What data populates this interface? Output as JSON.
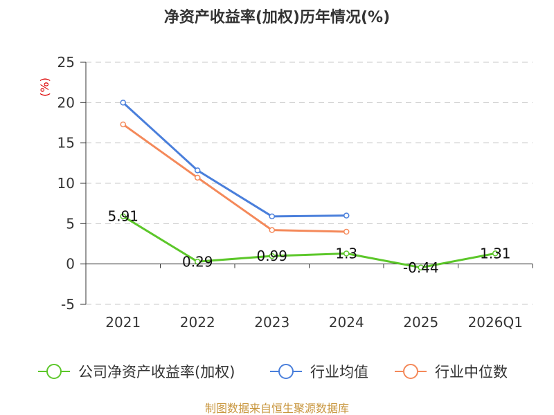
{
  "chart_data": {
    "type": "line",
    "title": "净资产收益率(加权)历年情况(%)",
    "ylabel": "(%)",
    "categories": [
      "2021",
      "2022",
      "2023",
      "2024",
      "2025",
      "2026Q1"
    ],
    "ylim": [
      -5,
      25
    ],
    "yticks": [
      "25",
      "20",
      "15",
      "10",
      "5",
      "0",
      "-5"
    ],
    "grid": true,
    "legend_position": "bottom",
    "series": [
      {
        "name": "公司净资产收益率(加权)",
        "color": "#5cc72a",
        "values": [
          5.91,
          0.29,
          0.99,
          1.3,
          -0.44,
          1.31
        ],
        "labels": [
          "5.91",
          "0.29",
          "0.99",
          "1.3",
          "-0.44",
          "1.31"
        ]
      },
      {
        "name": "行业均值",
        "color": "#4a7fdb",
        "values": [
          20.0,
          11.6,
          5.9,
          6.0,
          null,
          null
        ]
      },
      {
        "name": "行业中位数",
        "color": "#f4895a",
        "values": [
          17.3,
          10.7,
          4.2,
          4.0,
          null,
          null
        ]
      }
    ]
  },
  "source": "制图数据来自恒生聚源数据库"
}
